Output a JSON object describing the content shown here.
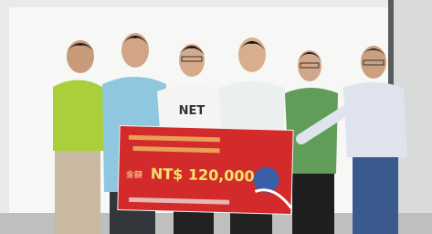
{
  "image": {
    "board": {
      "amount_label": "金額",
      "amount": "NT$ 120,000"
    },
    "shirt_text": "NET"
  }
}
